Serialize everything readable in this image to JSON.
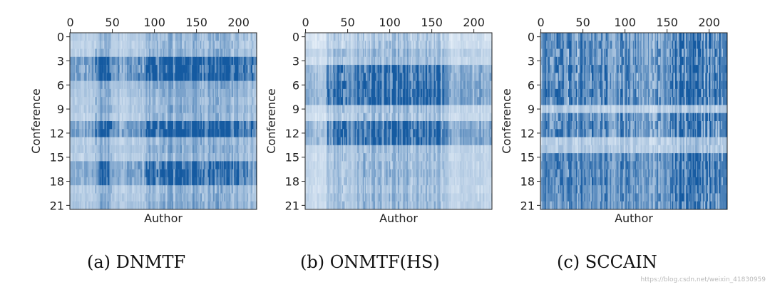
{
  "chart_data": [
    {
      "type": "heatmap",
      "title": "",
      "caption": "(a) DNMTF",
      "xlabel": "Author",
      "ylabel": "Conference",
      "rows": 22,
      "cols": 222,
      "xticks": [
        "0",
        "50",
        "100",
        "150",
        "200"
      ],
      "yticks": [
        "0",
        "3",
        "6",
        "9",
        "12",
        "15",
        "18",
        "21"
      ],
      "colormap": [
        "#f7fbff",
        "#08519c"
      ],
      "base_level": 0.12,
      "row_means": [
        0.18,
        0.14,
        0.2,
        0.3,
        0.22,
        0.28,
        0.3,
        0.26,
        0.2,
        0.24,
        0.18,
        0.22,
        0.3,
        0.2,
        0.26,
        0.18,
        0.28,
        0.3,
        0.26,
        0.2,
        0.22,
        0.28
      ],
      "col_blocks": [
        [
          0,
          30,
          0.2
        ],
        [
          30,
          50,
          0.5
        ],
        [
          50,
          90,
          0.25
        ],
        [
          90,
          110,
          0.45
        ],
        [
          110,
          200,
          0.55
        ],
        [
          200,
          222,
          0.35
        ]
      ],
      "row_blocks": [
        [
          3,
          5,
          0.9
        ],
        [
          11,
          12,
          0.85
        ],
        [
          16,
          18,
          0.6
        ]
      ]
    },
    {
      "type": "heatmap",
      "title": "",
      "caption": "(b) ONMTF(HS)",
      "xlabel": "Author",
      "ylabel": "Conference",
      "rows": 22,
      "cols": 222,
      "xticks": [
        "0",
        "50",
        "100",
        "150",
        "200"
      ],
      "yticks": [
        "0",
        "3",
        "6",
        "9",
        "12",
        "15",
        "18",
        "21"
      ],
      "colormap": [
        "#f7fbff",
        "#08519c"
      ],
      "base_level": 0.06,
      "row_means": [
        0.04,
        0.06,
        0.18,
        0.12,
        0.2,
        0.22,
        0.24,
        0.3,
        0.28,
        0.14,
        0.1,
        0.2,
        0.26,
        0.22,
        0.16,
        0.14,
        0.16,
        0.18,
        0.16,
        0.12,
        0.18,
        0.16
      ],
      "col_blocks": [
        [
          0,
          25,
          0.15
        ],
        [
          25,
          60,
          0.4
        ],
        [
          60,
          110,
          0.55
        ],
        [
          110,
          170,
          0.5
        ],
        [
          170,
          222,
          0.2
        ]
      ],
      "row_blocks": [
        [
          4,
          5,
          0.7
        ],
        [
          6,
          8,
          0.75
        ],
        [
          11,
          13,
          0.8
        ]
      ]
    },
    {
      "type": "heatmap",
      "title": "",
      "caption": "(c) SCCAIN",
      "xlabel": "Author",
      "ylabel": "Conference",
      "rows": 22,
      "cols": 222,
      "xticks": [
        "0",
        "50",
        "100",
        "150",
        "200"
      ],
      "yticks": [
        "0",
        "3",
        "6",
        "9",
        "12",
        "15",
        "18",
        "21"
      ],
      "colormap": [
        "#f7fbff",
        "#08519c"
      ],
      "base_level": 0.08,
      "row_means": [
        0.1,
        0.12,
        0.12,
        0.14,
        0.18,
        0.1,
        0.16,
        0.16,
        0.14,
        0.1,
        0.12,
        0.14,
        0.12,
        0.1,
        0.12,
        0.3,
        0.32,
        0.3,
        0.34,
        0.3,
        0.28,
        0.26
      ],
      "col_blocks": [
        [
          0,
          105,
          0.35
        ],
        [
          105,
          150,
          0.3
        ],
        [
          150,
          185,
          0.45
        ],
        [
          185,
          222,
          0.4
        ]
      ],
      "row_blocks": [
        [
          0,
          4,
          0.8
        ],
        [
          5,
          8,
          0.85
        ],
        [
          10,
          12,
          0.8
        ],
        [
          15,
          21,
          0.6
        ]
      ]
    }
  ],
  "captions": [
    "(a) DNMTF",
    "(b) ONMTF(HS)",
    "(c) SCCAIN"
  ],
  "watermark": "https://blog.csdn.net/weixin_41830959"
}
